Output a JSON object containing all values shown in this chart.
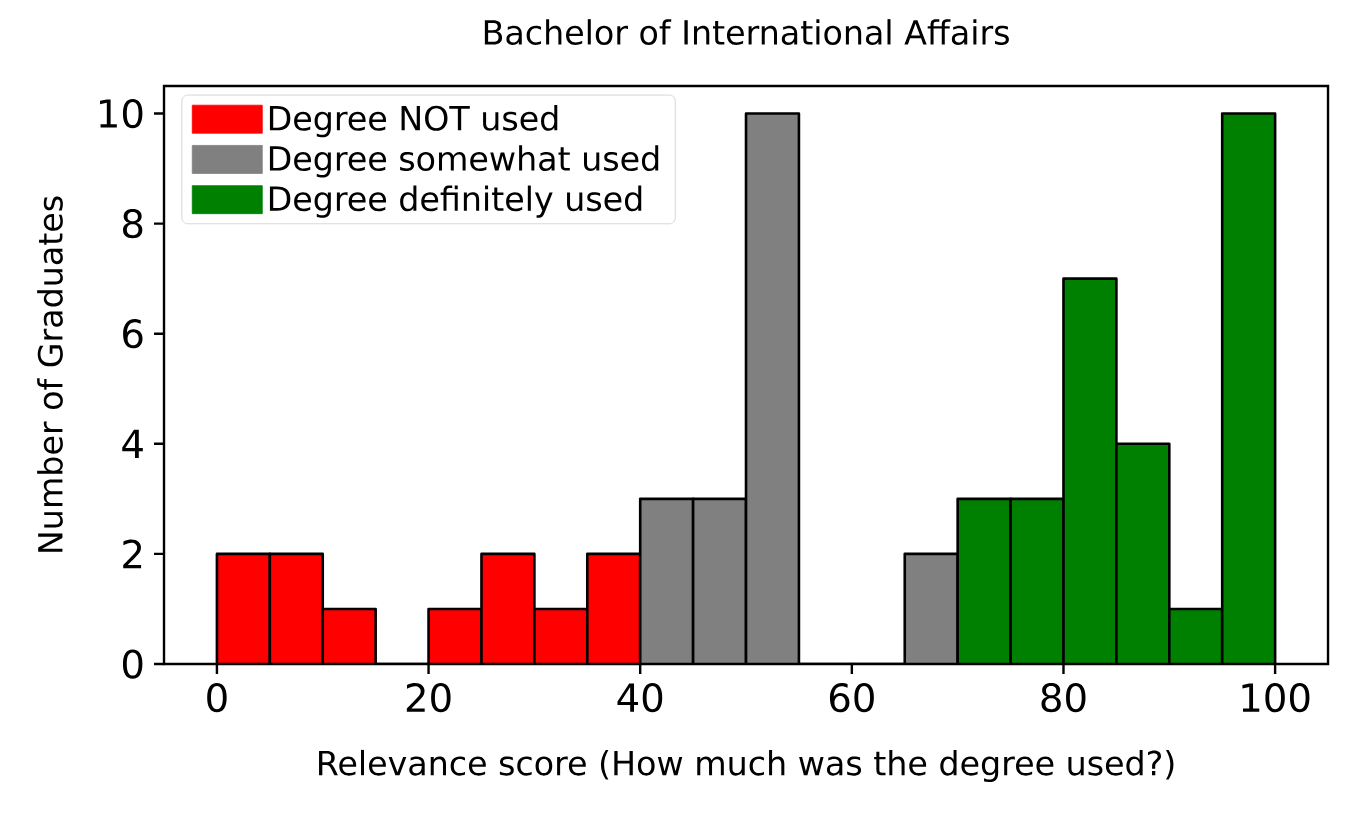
{
  "chart_data": {
    "type": "histogram",
    "title": "Bachelor of International Affairs",
    "xlabel": "Relevance score (How much was the degree used?)",
    "ylabel": "Number of Graduates",
    "bins": [
      0,
      5,
      10,
      15,
      20,
      25,
      30,
      35,
      40,
      45,
      50,
      55,
      60,
      65,
      70,
      75,
      80,
      85,
      90,
      95,
      100
    ],
    "series": [
      {
        "name": "Degree NOT used",
        "color": "#ff0000",
        "values": [
          2,
          2,
          1,
          0,
          1,
          2,
          1,
          2,
          null,
          null,
          null,
          null,
          null,
          null,
          null,
          null,
          null,
          null,
          null,
          null
        ]
      },
      {
        "name": "Degree somewhat used",
        "color": "#808080",
        "values": [
          null,
          null,
          null,
          null,
          null,
          null,
          null,
          null,
          3,
          3,
          10,
          0,
          0,
          2,
          null,
          null,
          null,
          null,
          null,
          null
        ]
      },
      {
        "name": "Degree definitely used",
        "color": "#008000",
        "values": [
          null,
          null,
          null,
          null,
          null,
          null,
          null,
          null,
          null,
          null,
          null,
          null,
          null,
          null,
          3,
          3,
          7,
          4,
          1,
          10
        ]
      }
    ],
    "xlim": [
      -5,
      105
    ],
    "ylim": [
      0,
      10.5
    ],
    "xticks": [
      0,
      20,
      40,
      60,
      80,
      100
    ],
    "yticks": [
      0,
      2,
      4,
      6,
      8,
      10
    ],
    "legend": "top left"
  }
}
